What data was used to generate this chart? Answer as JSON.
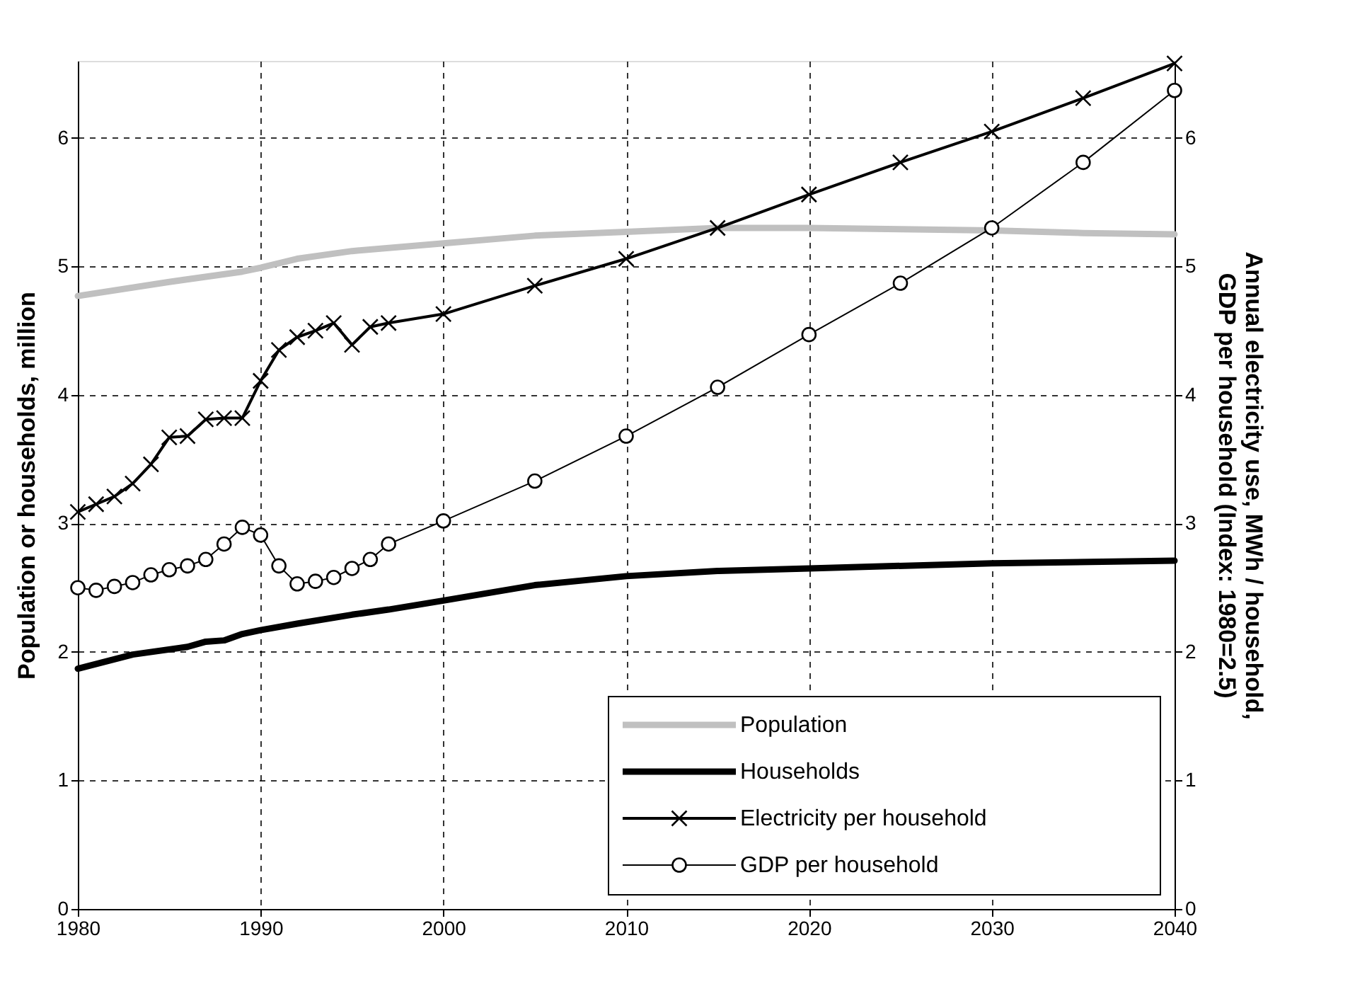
{
  "chart_data": {
    "type": "line",
    "xlabel": null,
    "ylabel": "Population or households, million",
    "y2label": "Annual electricity use, MWh / household,\nGDP per household (Index: 1980=2.5)",
    "xlim": [
      1980,
      2040
    ],
    "xticks": [
      1980,
      1990,
      2000,
      2010,
      2020,
      2030,
      2040
    ],
    "ylim": [
      0,
      6.6
    ],
    "yticks": [
      0,
      1,
      2,
      3,
      4,
      5,
      6
    ],
    "y2lim": [
      0,
      6.6
    ],
    "y2ticks": [
      0,
      1,
      2,
      3,
      4,
      5,
      6
    ],
    "grid": true,
    "legend": "bottom right",
    "line_style": "solid",
    "series": [
      {
        "name": "Population",
        "color": "#c0c0c0",
        "marker": "none",
        "x": [
          1980,
          1985,
          1989,
          1990,
          1992,
          1995,
          2000,
          2005,
          2010,
          2015,
          2020,
          2025,
          2030,
          2035,
          2040
        ],
        "values": [
          4.77,
          4.88,
          4.96,
          4.99,
          5.06,
          5.12,
          5.18,
          5.24,
          5.27,
          5.3,
          5.3,
          5.29,
          5.28,
          5.26,
          5.25
        ]
      },
      {
        "name": "Households",
        "color": "#000000",
        "marker": "none",
        "x": [
          1980,
          1983,
          1986,
          1987,
          1988,
          1989,
          1990,
          1992,
          1995,
          1997,
          2000,
          2005,
          2010,
          2015,
          2020,
          2030,
          2040
        ],
        "values": [
          1.87,
          1.98,
          2.04,
          2.08,
          2.09,
          2.14,
          2.17,
          2.22,
          2.29,
          2.33,
          2.4,
          2.52,
          2.59,
          2.63,
          2.65,
          2.69,
          2.71
        ]
      },
      {
        "name": "Electricity per household",
        "color": "#000000",
        "marker": "cross",
        "axis": "y2",
        "x": [
          1980,
          1981,
          1982,
          1983,
          1984,
          1985,
          1986,
          1987,
          1988,
          1989,
          1990,
          1991,
          1992,
          1993,
          1994,
          1995,
          1996,
          1997,
          2000,
          2005,
          2010,
          2015,
          2020,
          2025,
          2030,
          2035,
          2040
        ],
        "values": [
          3.09,
          3.15,
          3.21,
          3.31,
          3.46,
          3.67,
          3.68,
          3.81,
          3.82,
          3.82,
          4.11,
          4.35,
          4.45,
          4.5,
          4.56,
          4.39,
          4.53,
          4.56,
          4.63,
          4.85,
          5.06,
          5.3,
          5.56,
          5.81,
          6.05,
          6.31,
          6.58
        ]
      },
      {
        "name": "GDP per household",
        "color": "#000000",
        "marker": "circle",
        "axis": "y2",
        "x": [
          1980,
          1981,
          1982,
          1983,
          1984,
          1985,
          1986,
          1987,
          1988,
          1989,
          1990,
          1991,
          1992,
          1993,
          1994,
          1995,
          1996,
          1997,
          2000,
          2005,
          2010,
          2015,
          2020,
          2025,
          2030,
          2035,
          2040
        ],
        "values": [
          2.5,
          2.48,
          2.51,
          2.54,
          2.6,
          2.64,
          2.67,
          2.72,
          2.84,
          2.97,
          2.91,
          2.67,
          2.53,
          2.55,
          2.58,
          2.65,
          2.72,
          2.84,
          3.02,
          3.33,
          3.68,
          4.06,
          4.47,
          4.87,
          5.3,
          5.81,
          6.37
        ]
      }
    ]
  }
}
